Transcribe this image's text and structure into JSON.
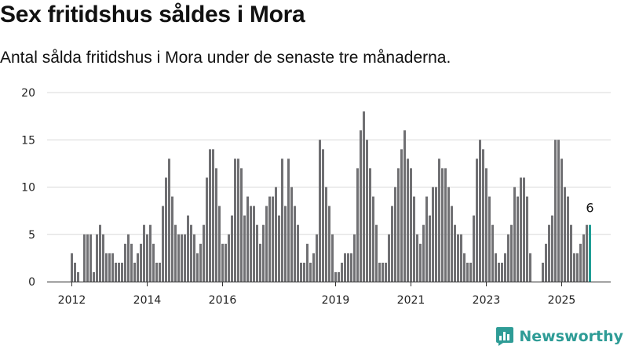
{
  "chart_data": {
    "type": "bar",
    "title": "Sex fritidshus såldes i Mora",
    "subtitle": "Antal sålda fritidshus i Mora under de senaste tre månaderna.",
    "x_start": "2012-01",
    "x_end": "2025-08",
    "ylim": [
      0,
      20
    ],
    "yticks": [
      0,
      5,
      10,
      15,
      20
    ],
    "xticks": [
      "2012",
      "2014",
      "2016",
      "2019",
      "2021",
      "2023",
      "2025"
    ],
    "grid": true,
    "values": [
      3,
      2,
      1,
      0,
      5,
      5,
      5,
      1,
      5,
      6,
      5,
      3,
      3,
      3,
      2,
      2,
      2,
      4,
      5,
      4,
      2,
      3,
      4,
      6,
      5,
      6,
      4,
      2,
      2,
      8,
      11,
      13,
      9,
      6,
      5,
      5,
      5,
      7,
      6,
      5,
      3,
      4,
      6,
      11,
      14,
      14,
      12,
      8,
      4,
      4,
      5,
      7,
      13,
      13,
      12,
      7,
      9,
      8,
      8,
      6,
      4,
      6,
      8,
      9,
      9,
      10,
      7,
      13,
      8,
      13,
      10,
      8,
      6,
      2,
      2,
      4,
      2,
      3,
      5,
      15,
      14,
      10,
      8,
      5,
      1,
      1,
      2,
      3,
      3,
      3,
      5,
      12,
      16,
      18,
      15,
      12,
      9,
      6,
      2,
      2,
      2,
      5,
      8,
      10,
      12,
      14,
      16,
      13,
      12,
      9,
      5,
      4,
      6,
      9,
      7,
      10,
      10,
      13,
      12,
      12,
      10,
      8,
      6,
      5,
      5,
      3,
      2,
      2,
      7,
      13,
      15,
      14,
      12,
      9,
      6,
      3,
      2,
      2,
      3,
      5,
      6,
      10,
      9,
      11,
      11,
      9,
      3,
      0,
      0,
      0,
      2,
      4,
      6,
      7,
      15,
      15,
      13,
      10,
      9,
      6,
      3,
      3,
      4,
      5,
      6,
      6
    ],
    "highlight": {
      "value": 6,
      "label": "6",
      "color": "#1f9e96"
    },
    "bar_color": "#707073"
  },
  "brand": {
    "name": "Newsworthy"
  }
}
